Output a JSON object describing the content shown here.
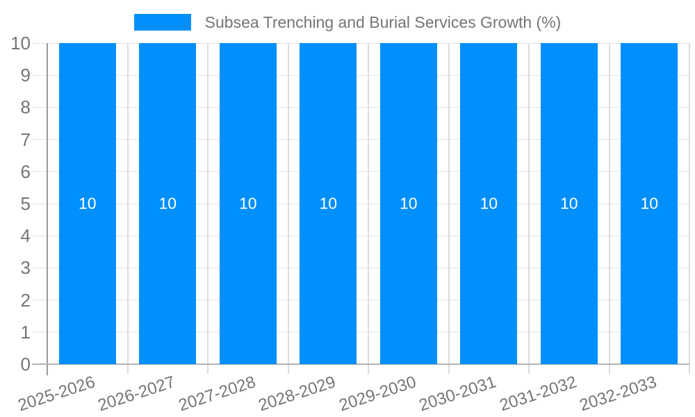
{
  "legend": {
    "label": "Subsea Trenching and Burial Services Growth (%)"
  },
  "chart_data": {
    "type": "bar",
    "title": "Subsea Trenching and Burial Services Growth (%)",
    "categories": [
      "2025-2026",
      "2026-2027",
      "2027-2028",
      "2028-2029",
      "2029-2030",
      "2030-2031",
      "2031-2032",
      "2032-2033"
    ],
    "series": [
      {
        "name": "Subsea Trenching and Burial Services Growth (%)",
        "values": [
          10,
          10,
          10,
          10,
          10,
          10,
          10,
          10
        ]
      }
    ],
    "bar_value_labels": [
      "10",
      "10",
      "10",
      "10",
      "10",
      "10",
      "10",
      "10"
    ],
    "xlabel": "",
    "ylabel": "",
    "ylim": [
      0,
      10
    ],
    "y_ticks": [
      0,
      1,
      2,
      3,
      4,
      5,
      6,
      7,
      8,
      9,
      10
    ],
    "grid": true,
    "legend_position": "top",
    "x_label_rotation_deg": -18,
    "colors": {
      "bar": "#008FFB",
      "grid": "#e4e4e4",
      "grid_v": "#dcdcdc",
      "axis": "#b3b3b3",
      "y_axis": "#999999",
      "tick_label": "#757575",
      "legend_label": "#757575",
      "bar_label": "#ffffff",
      "background": "#ffffff"
    }
  }
}
